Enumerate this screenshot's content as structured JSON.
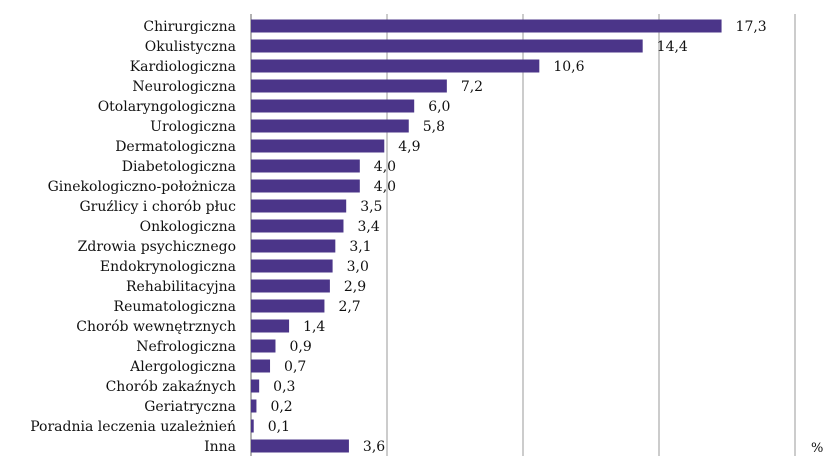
{
  "chart_data": {
    "type": "bar",
    "orientation": "horizontal",
    "categories": [
      "Chirurgiczna",
      "Okulistyczna",
      "Kardiologiczna",
      "Neurologiczna",
      "Otolaryngologiczna",
      "Urologiczna",
      "Dermatologiczna",
      "Diabetologiczna",
      "Ginekologiczno-położnicza",
      "Gruźlicy i chorób płuc",
      "Onkologiczna",
      "Zdrowia psychicznego",
      "Endokrynologiczna",
      "Rehabilitacyjna",
      "Reumatologiczna",
      "Chorób wewnętrznych",
      "Nefrologiczna",
      "Alergologiczna",
      "Chorób zakaźnych",
      "Geriatryczna",
      "Poradnia leczenia uzależnień",
      "Inna"
    ],
    "values": [
      17.3,
      14.4,
      10.6,
      7.2,
      6.0,
      5.8,
      4.9,
      4.0,
      4.0,
      3.5,
      3.4,
      3.1,
      3.0,
      2.9,
      2.7,
      1.4,
      0.9,
      0.7,
      0.3,
      0.2,
      0.1,
      3.6
    ],
    "value_labels": [
      "17,3",
      "14,4",
      "10,6",
      "7,2",
      "6,0",
      "5,8",
      "4,9",
      "4,0",
      "4,0",
      "3,5",
      "3,4",
      "3,1",
      "3,0",
      "2,9",
      "2,7",
      "1,4",
      "0,9",
      "0,7",
      "0,3",
      "0,2",
      "0,1",
      "3,6"
    ],
    "xunit": "%",
    "xlim": [
      0,
      20
    ],
    "grid": true,
    "bar_color": "#4b3589",
    "grid_color": "#9a9a9a",
    "axis_color": "#666666"
  }
}
